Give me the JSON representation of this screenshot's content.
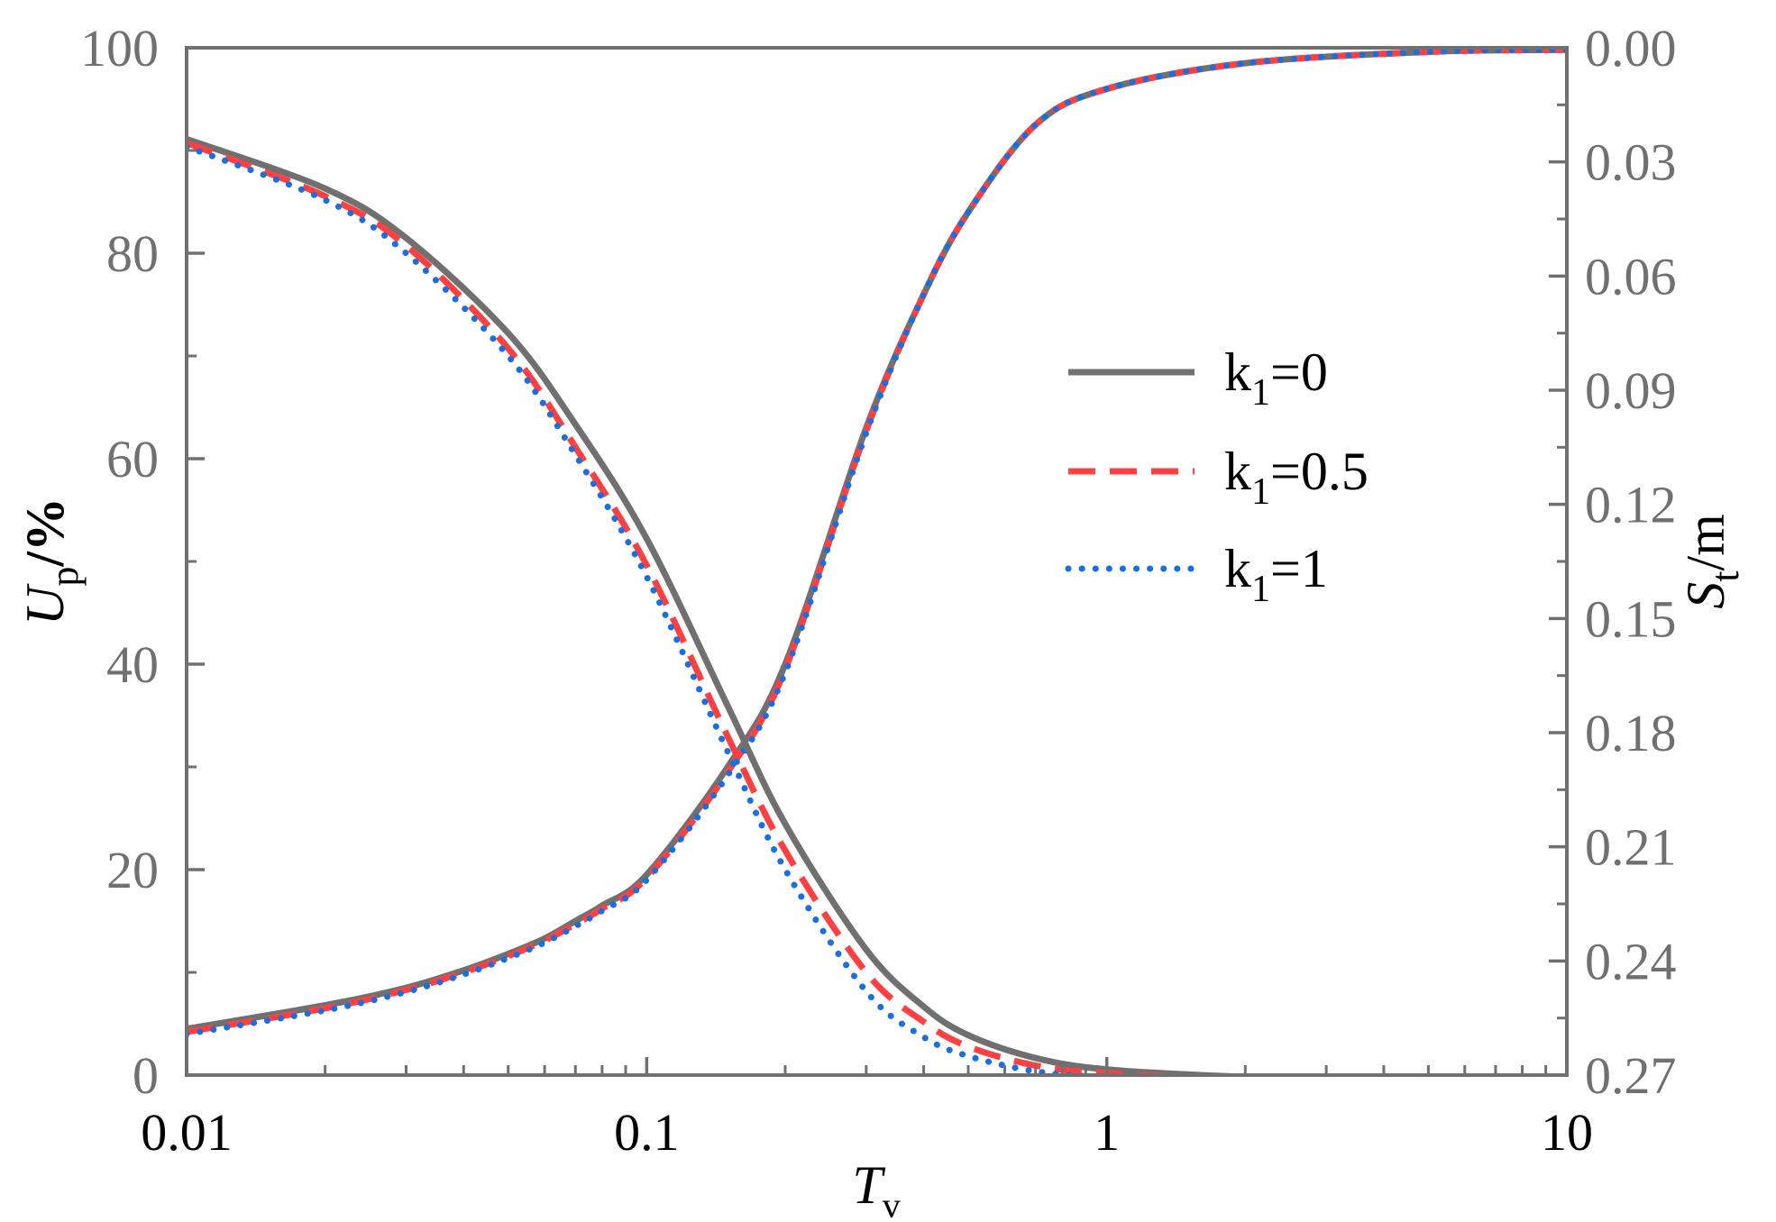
{
  "chart_data": {
    "type": "line",
    "xlabel": {
      "main": "T",
      "sub": "v"
    },
    "ylabel_left": {
      "main": "U",
      "sub": "p",
      "rest": "/%"
    },
    "ylabel_right": {
      "main": "S",
      "sub": "t",
      "rest": "/m"
    },
    "x_scale": "log",
    "xlim": [
      0.01,
      10
    ],
    "ylim_left": [
      0,
      100
    ],
    "ylim_right": [
      0.27,
      0.0
    ],
    "x_ticks": [
      0.01,
      0.1,
      1,
      10
    ],
    "x_tick_labels": [
      "0.01",
      "0.1",
      "1",
      "10"
    ],
    "y_left_ticks": [
      0,
      20,
      40,
      60,
      80,
      100
    ],
    "y_left_tick_labels": [
      "0",
      "20",
      "40",
      "60",
      "80",
      "100"
    ],
    "y_right_ticks": [
      0.0,
      0.03,
      0.06,
      0.09,
      0.12,
      0.15,
      0.18,
      0.21,
      0.24,
      0.27
    ],
    "y_right_tick_labels": [
      "0.00",
      "0.03",
      "0.06",
      "0.09",
      "0.12",
      "0.15",
      "0.18",
      "0.21",
      "0.24",
      "0.27"
    ],
    "grid": false,
    "legend_position": "right-center",
    "legend": [
      {
        "prefix": "k",
        "sub": "1",
        "suffix": "=0"
      },
      {
        "prefix": "k",
        "sub": "1",
        "suffix": "=0.5"
      },
      {
        "prefix": "k",
        "sub": "1",
        "suffix": "=1"
      }
    ],
    "series": [
      {
        "axis": "left",
        "color": "#707070",
        "dash": "solid",
        "x": [
          0.01,
          0.02,
          0.03,
          0.04,
          0.05,
          0.06,
          0.07,
          0.08,
          0.1,
          0.15,
          0.2,
          0.3,
          0.4,
          0.5,
          0.7,
          1,
          2,
          5,
          10
        ],
        "y": [
          4.5,
          6.8,
          8.5,
          10.2,
          11.8,
          13.3,
          15.0,
          16.5,
          19.5,
          30.0,
          40.0,
          63.0,
          76.0,
          84.0,
          92.5,
          96.0,
          98.5,
          99.6,
          99.8
        ]
      },
      {
        "axis": "left",
        "color": "#ff4040",
        "dash": "dashed",
        "x": [
          0.01,
          0.02,
          0.03,
          0.04,
          0.05,
          0.06,
          0.07,
          0.08,
          0.1,
          0.15,
          0.2,
          0.3,
          0.4,
          0.5,
          0.7,
          1,
          2,
          5,
          10
        ],
        "y": [
          4.2,
          6.5,
          8.3,
          10.0,
          11.6,
          13.1,
          14.7,
          16.2,
          19.2,
          29.5,
          39.5,
          62.7,
          76.0,
          84.0,
          92.5,
          96.0,
          98.5,
          99.6,
          99.8
        ]
      },
      {
        "axis": "left",
        "color": "#1a6fe0",
        "dash": "dotted",
        "x": [
          0.01,
          0.02,
          0.03,
          0.04,
          0.05,
          0.06,
          0.07,
          0.08,
          0.1,
          0.15,
          0.2,
          0.3,
          0.4,
          0.5,
          0.7,
          1,
          2,
          5,
          10
        ],
        "y": [
          4.0,
          6.3,
          8.1,
          9.8,
          11.4,
          12.9,
          14.5,
          16.0,
          19.0,
          29.2,
          39.2,
          62.5,
          76.0,
          84.0,
          92.5,
          96.0,
          98.5,
          99.6,
          99.8
        ]
      },
      {
        "axis": "right",
        "color": "#707070",
        "dash": "solid",
        "x": [
          0.01,
          0.02,
          0.03,
          0.05,
          0.07,
          0.1,
          0.15,
          0.2,
          0.3,
          0.4,
          0.5,
          0.7,
          1,
          2,
          5,
          10
        ],
        "y": [
          0.024,
          0.037,
          0.05,
          0.075,
          0.099,
          0.129,
          0.173,
          0.204,
          0.237,
          0.252,
          0.2595,
          0.2655,
          0.2685,
          0.2705,
          0.2718,
          0.2722
        ]
      },
      {
        "axis": "right",
        "color": "#ff4040",
        "dash": "dashed",
        "x": [
          0.01,
          0.02,
          0.03,
          0.05,
          0.07,
          0.1,
          0.15,
          0.2,
          0.3,
          0.4,
          0.5,
          0.7,
          1,
          2,
          5,
          10
        ],
        "y": [
          0.025,
          0.039,
          0.052,
          0.079,
          0.105,
          0.136,
          0.181,
          0.211,
          0.243,
          0.256,
          0.2625,
          0.2675,
          0.2695,
          0.271,
          0.2718,
          0.272
        ]
      },
      {
        "axis": "right",
        "color": "#1a6fe0",
        "dash": "dotted",
        "x": [
          0.01,
          0.02,
          0.03,
          0.05,
          0.07,
          0.1,
          0.15,
          0.2,
          0.3,
          0.4,
          0.5,
          0.7,
          1,
          2,
          5,
          10
        ],
        "y": [
          0.026,
          0.04,
          0.054,
          0.081,
          0.107,
          0.139,
          0.185,
          0.216,
          0.248,
          0.26,
          0.265,
          0.269,
          0.2705,
          0.2715,
          0.2719,
          0.272
        ]
      }
    ]
  }
}
